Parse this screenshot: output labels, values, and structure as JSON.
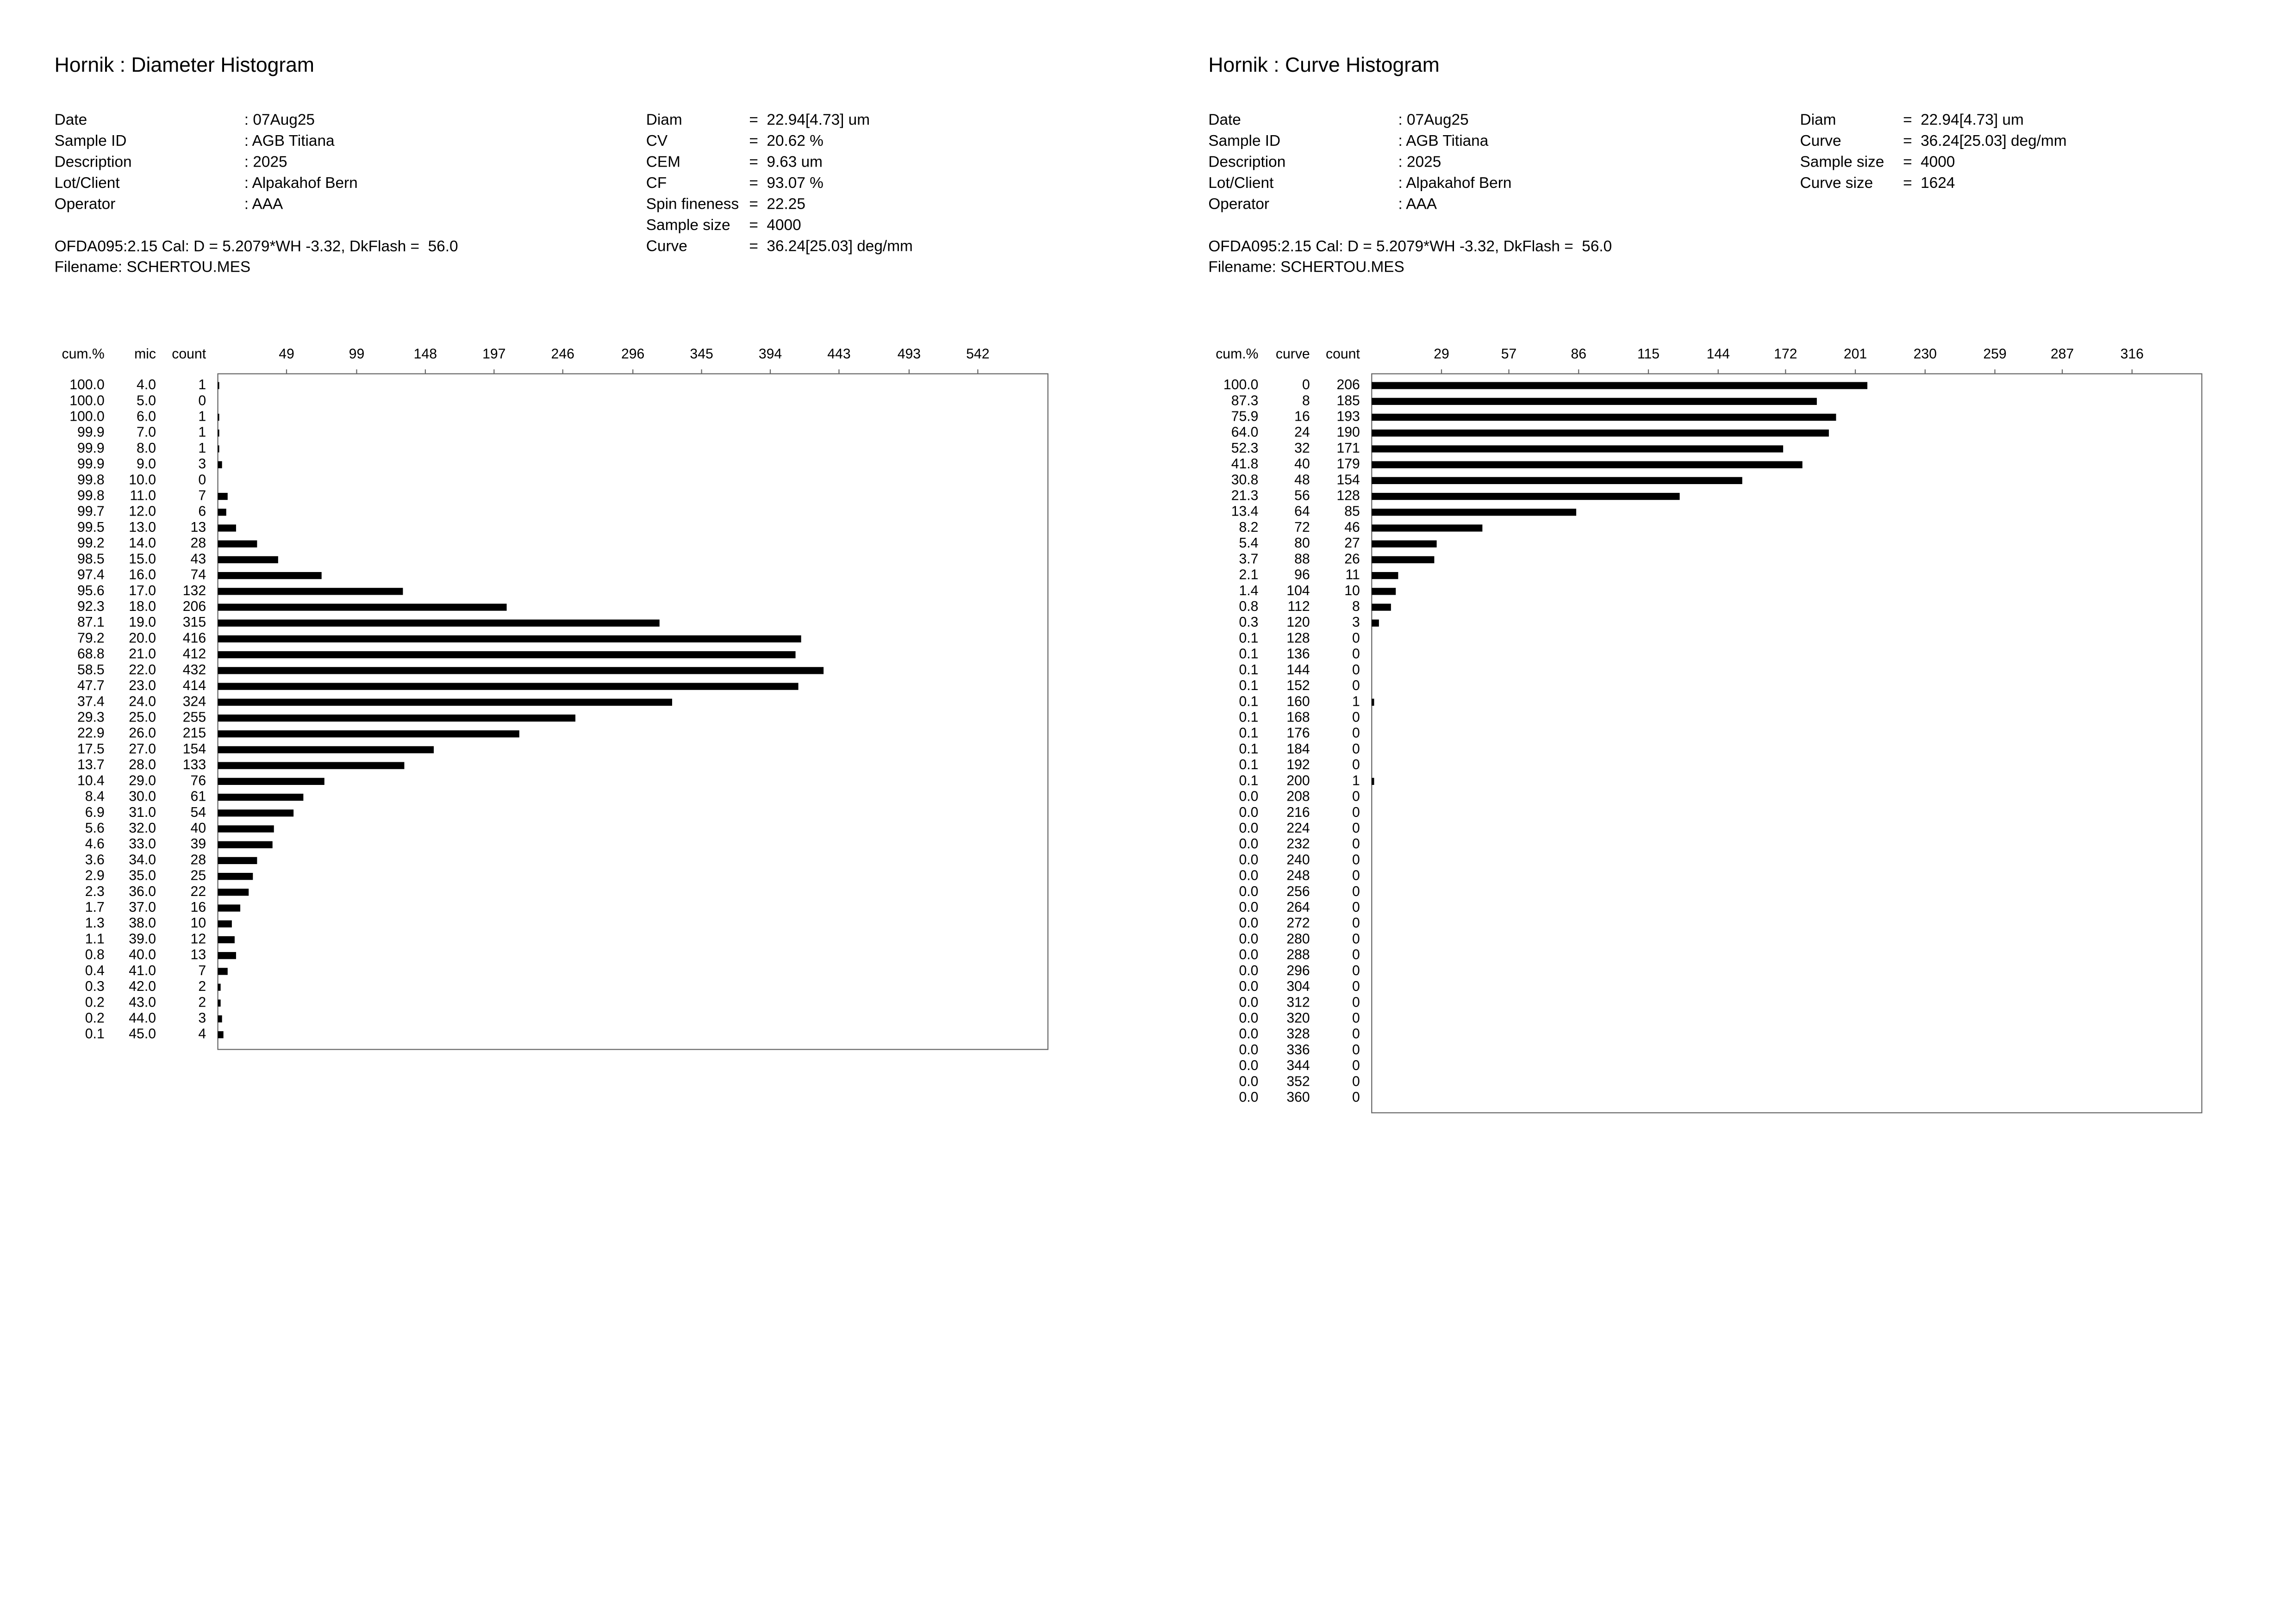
{
  "chart_data": [
    {
      "type": "bar",
      "title": "Hornik : Diameter Histogram",
      "info": [
        {
          "label": "Date",
          "value": ": 07Aug25"
        },
        {
          "label": "Sample ID",
          "value": ": AGB Titiana"
        },
        {
          "label": "Description",
          "value": ": 2025"
        },
        {
          "label": "Lot/Client",
          "value": ": Alpakahof Bern"
        },
        {
          "label": "Operator",
          "value": ": AAA"
        }
      ],
      "stats": [
        {
          "label": "Diam",
          "value": "=  22.94[4.73] um"
        },
        {
          "label": "CV",
          "value": "=  20.62 %"
        },
        {
          "label": "CEM",
          "value": "=  9.63 um"
        },
        {
          "label": "CF",
          "value": "=  93.07 %"
        },
        {
          "label": "Spin fineness",
          "value": "=  22.25"
        },
        {
          "label": "Sample size",
          "value": "=  4000"
        },
        {
          "label": "Curve",
          "value": "=  36.24[25.03] deg/mm"
        }
      ],
      "calibration": "OFDA095:2.15 Cal: D = 5.2079*WH -3.32, DkFlash =  56.0",
      "filename": "Filename: SCHERTOU.MES",
      "columns": [
        "cum.%",
        "mic",
        "count"
      ],
      "cum_percent": [
        "100.0",
        "100.0",
        "100.0",
        "99.9",
        "99.9",
        "99.9",
        "99.8",
        "99.8",
        "99.7",
        "99.5",
        "99.2",
        "98.5",
        "97.4",
        "95.6",
        "92.3",
        "87.1",
        "79.2",
        "68.8",
        "58.5",
        "47.7",
        "37.4",
        "29.3",
        "22.9",
        "17.5",
        "13.7",
        "10.4",
        "8.4",
        "6.9",
        "5.6",
        "4.6",
        "3.6",
        "2.9",
        "2.3",
        "1.7",
        "1.3",
        "1.1",
        "0.8",
        "0.4",
        "0.3",
        "0.2",
        "0.2",
        "0.1"
      ],
      "categories": [
        "4.0",
        "5.0",
        "6.0",
        "7.0",
        "8.0",
        "9.0",
        "10.0",
        "11.0",
        "12.0",
        "13.0",
        "14.0",
        "15.0",
        "16.0",
        "17.0",
        "18.0",
        "19.0",
        "20.0",
        "21.0",
        "22.0",
        "23.0",
        "24.0",
        "25.0",
        "26.0",
        "27.0",
        "28.0",
        "29.0",
        "30.0",
        "31.0",
        "32.0",
        "33.0",
        "34.0",
        "35.0",
        "36.0",
        "37.0",
        "38.0",
        "39.0",
        "40.0",
        "41.0",
        "42.0",
        "43.0",
        "44.0",
        "45.0"
      ],
      "values": [
        1,
        0,
        1,
        1,
        1,
        3,
        0,
        7,
        6,
        13,
        28,
        43,
        74,
        132,
        206,
        315,
        416,
        412,
        432,
        414,
        324,
        255,
        215,
        154,
        133,
        76,
        61,
        54,
        40,
        39,
        28,
        25,
        22,
        16,
        10,
        12,
        13,
        7,
        2,
        2,
        3,
        4
      ],
      "color": "#000000",
      "xlim": [
        0,
        592
      ],
      "xticks": [
        49,
        99,
        148,
        197,
        246,
        296,
        345,
        394,
        443,
        493,
        542
      ]
    },
    {
      "type": "bar",
      "title": "Hornik : Curve Histogram",
      "info": [
        {
          "label": "Date",
          "value": ": 07Aug25"
        },
        {
          "label": "Sample ID",
          "value": ": AGB Titiana"
        },
        {
          "label": "Description",
          "value": ": 2025"
        },
        {
          "label": "Lot/Client",
          "value": ": Alpakahof Bern"
        },
        {
          "label": "Operator",
          "value": ": AAA"
        }
      ],
      "stats": [
        {
          "label": "Diam",
          "value": "=  22.94[4.73] um"
        },
        {
          "label": "Curve",
          "value": "=  36.24[25.03] deg/mm"
        },
        {
          "label": "Sample size",
          "value": "=  4000"
        },
        {
          "label": "Curve size",
          "value": "=  1624"
        }
      ],
      "calibration": "OFDA095:2.15 Cal: D = 5.2079*WH -3.32, DkFlash =  56.0",
      "filename": "Filename: SCHERTOU.MES",
      "columns": [
        "cum.%",
        "curve",
        "count"
      ],
      "cum_percent": [
        "100.0",
        "87.3",
        "75.9",
        "64.0",
        "52.3",
        "41.8",
        "30.8",
        "21.3",
        "13.4",
        "8.2",
        "5.4",
        "3.7",
        "2.1",
        "1.4",
        "0.8",
        "0.3",
        "0.1",
        "0.1",
        "0.1",
        "0.1",
        "0.1",
        "0.1",
        "0.1",
        "0.1",
        "0.1",
        "0.1",
        "0.0",
        "0.0",
        "0.0",
        "0.0",
        "0.0",
        "0.0",
        "0.0",
        "0.0",
        "0.0",
        "0.0",
        "0.0",
        "0.0",
        "0.0",
        "0.0",
        "0.0",
        "0.0",
        "0.0",
        "0.0",
        "0.0",
        "0.0"
      ],
      "categories": [
        "0",
        "8",
        "16",
        "24",
        "32",
        "40",
        "48",
        "56",
        "64",
        "72",
        "80",
        "88",
        "96",
        "104",
        "112",
        "120",
        "128",
        "136",
        "144",
        "152",
        "160",
        "168",
        "176",
        "184",
        "192",
        "200",
        "208",
        "216",
        "224",
        "232",
        "240",
        "248",
        "256",
        "264",
        "272",
        "280",
        "288",
        "296",
        "304",
        "312",
        "320",
        "328",
        "336",
        "344",
        "352",
        "360"
      ],
      "values": [
        206,
        185,
        193,
        190,
        171,
        179,
        154,
        128,
        85,
        46,
        27,
        26,
        11,
        10,
        8,
        3,
        0,
        0,
        0,
        0,
        1,
        0,
        0,
        0,
        0,
        1,
        0,
        0,
        0,
        0,
        0,
        0,
        0,
        0,
        0,
        0,
        0,
        0,
        0,
        0,
        0,
        0,
        0,
        0,
        0,
        0
      ],
      "color": "#000000",
      "xlim": [
        0,
        345
      ],
      "xticks": [
        29,
        57,
        86,
        115,
        144,
        172,
        201,
        230,
        259,
        287,
        316
      ]
    }
  ]
}
